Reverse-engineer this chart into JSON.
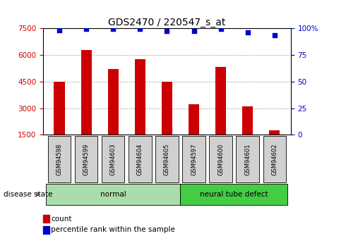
{
  "title": "GDS2470 / 220547_s_at",
  "samples": [
    "GSM94598",
    "GSM94599",
    "GSM94603",
    "GSM94604",
    "GSM94605",
    "GSM94597",
    "GSM94600",
    "GSM94601",
    "GSM94602"
  ],
  "counts": [
    4500,
    6250,
    5200,
    5750,
    4500,
    3200,
    5300,
    3100,
    1750
  ],
  "percentiles": [
    98,
    99,
    99,
    99,
    97,
    97,
    99,
    96,
    93
  ],
  "groups": [
    {
      "label": "normal",
      "start": 0,
      "end": 5,
      "color": "#aaddaa"
    },
    {
      "label": "neural tube defect",
      "start": 5,
      "end": 9,
      "color": "#44cc44"
    }
  ],
  "bar_color": "#cc0000",
  "dot_color": "#0000cc",
  "ylim_left": [
    1500,
    7500
  ],
  "ylim_right": [
    0,
    100
  ],
  "yticks_left": [
    1500,
    3000,
    4500,
    6000,
    7500
  ],
  "yticks_right": [
    0,
    25,
    50,
    75,
    100
  ],
  "grid_values": [
    3000,
    4500,
    6000
  ],
  "legend_count_label": "count",
  "legend_percentile_label": "percentile rank within the sample",
  "disease_state_label": "disease state",
  "tick_label_color_left": "#cc0000",
  "tick_label_color_right": "#0000cc",
  "title_fontsize": 10,
  "tick_fontsize": 7.5,
  "bar_width": 0.4,
  "dot_size": 25
}
